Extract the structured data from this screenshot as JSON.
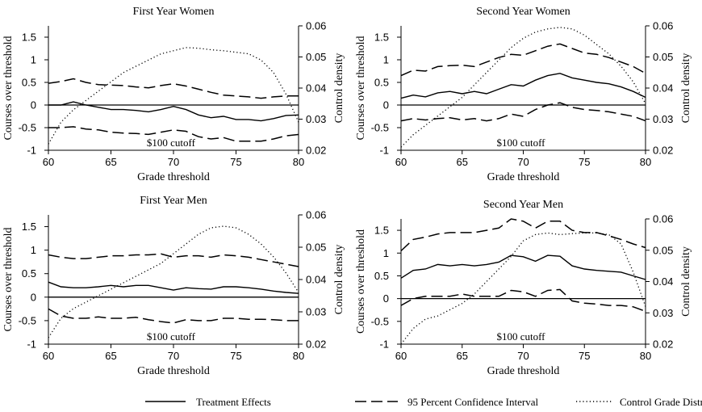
{
  "legend": {
    "items": [
      {
        "label": "Treatment Effects",
        "style": "solid"
      },
      {
        "label": "95 Percent Confidence Interval",
        "style": "dashed"
      },
      {
        "label": "Control Grade Distribution",
        "style": "dotted"
      }
    ]
  },
  "chart_data": [
    {
      "type": "line",
      "title": "First Year Women",
      "xlabel": "Grade threshold",
      "ylabel": "Courses over threshold",
      "y2label": "Control density",
      "xlim": [
        60,
        80
      ],
      "ylim": [
        -1,
        1.75
      ],
      "y2lim": [
        0.02,
        0.06
      ],
      "x_ticks": [
        "60",
        "65",
        "70",
        "75",
        "80"
      ],
      "y_ticks": [
        "-1",
        "-0.5",
        "0",
        "0.5",
        "1",
        "1.5"
      ],
      "y2_ticks": [
        "0.02",
        "0.03",
        "0.04",
        "0.05",
        "0.06"
      ],
      "annotation": "$100 cutoff",
      "x": [
        60,
        61,
        62,
        63,
        64,
        65,
        66,
        67,
        68,
        69,
        70,
        71,
        72,
        73,
        74,
        75,
        76,
        77,
        78,
        79,
        80
      ],
      "series": [
        {
          "style": "solid",
          "axis": "left",
          "values": [
            0.0,
            0.0,
            0.07,
            0.0,
            -0.05,
            -0.1,
            -0.1,
            -0.12,
            -0.15,
            -0.1,
            -0.03,
            -0.1,
            -0.22,
            -0.28,
            -0.25,
            -0.32,
            -0.32,
            -0.35,
            -0.3,
            -0.23,
            -0.22
          ]
        },
        {
          "style": "dashed",
          "axis": "left",
          "values": [
            0.48,
            0.52,
            0.58,
            0.5,
            0.45,
            0.44,
            0.43,
            0.4,
            0.38,
            0.43,
            0.47,
            0.42,
            0.35,
            0.28,
            0.22,
            0.2,
            0.18,
            0.15,
            0.18,
            0.2,
            0.2
          ]
        },
        {
          "style": "dashed",
          "axis": "left",
          "values": [
            -0.5,
            -0.5,
            -0.48,
            -0.53,
            -0.55,
            -0.6,
            -0.62,
            -0.63,
            -0.65,
            -0.6,
            -0.55,
            -0.58,
            -0.7,
            -0.75,
            -0.72,
            -0.8,
            -0.8,
            -0.8,
            -0.75,
            -0.68,
            -0.65
          ]
        },
        {
          "style": "dotted",
          "axis": "right",
          "values": [
            0.022,
            0.029,
            0.033,
            0.036,
            0.039,
            0.042,
            0.045,
            0.047,
            0.049,
            0.051,
            0.052,
            0.053,
            0.0528,
            0.0523,
            0.052,
            0.0515,
            0.051,
            0.049,
            0.045,
            0.038,
            0.029
          ]
        }
      ]
    },
    {
      "type": "line",
      "title": "Second Year Women",
      "xlabel": "Grade threshold",
      "ylabel": "Courses over threshold",
      "y2label": "Control density",
      "xlim": [
        60,
        80
      ],
      "ylim": [
        -1,
        1.75
      ],
      "y2lim": [
        0.02,
        0.06
      ],
      "x_ticks": [
        "60",
        "65",
        "70",
        "75",
        "80"
      ],
      "y_ticks": [
        "-1",
        "-0.5",
        "0",
        "0.5",
        "1",
        "1.5"
      ],
      "y2_ticks": [
        "0.02",
        "0.03",
        "0.04",
        "0.05",
        "0.06"
      ],
      "annotation": "$100 cutoff",
      "x": [
        60,
        61,
        62,
        63,
        64,
        65,
        66,
        67,
        68,
        69,
        70,
        71,
        72,
        73,
        74,
        75,
        76,
        77,
        78,
        79,
        80
      ],
      "series": [
        {
          "style": "solid",
          "axis": "left",
          "values": [
            0.15,
            0.22,
            0.18,
            0.27,
            0.3,
            0.25,
            0.3,
            0.25,
            0.35,
            0.45,
            0.42,
            0.55,
            0.65,
            0.7,
            0.6,
            0.55,
            0.5,
            0.47,
            0.4,
            0.3,
            0.17
          ]
        },
        {
          "style": "dashed",
          "axis": "left",
          "values": [
            0.65,
            0.77,
            0.75,
            0.85,
            0.87,
            0.88,
            0.85,
            0.95,
            1.05,
            1.12,
            1.1,
            1.2,
            1.3,
            1.35,
            1.25,
            1.15,
            1.12,
            1.05,
            0.95,
            0.85,
            0.7
          ]
        },
        {
          "style": "dashed",
          "axis": "left",
          "values": [
            -0.35,
            -0.3,
            -0.33,
            -0.3,
            -0.28,
            -0.33,
            -0.3,
            -0.35,
            -0.3,
            -0.2,
            -0.25,
            -0.1,
            0.0,
            0.05,
            -0.05,
            -0.1,
            -0.12,
            -0.15,
            -0.2,
            -0.25,
            -0.35
          ]
        },
        {
          "style": "dotted",
          "axis": "right",
          "values": [
            0.021,
            0.025,
            0.028,
            0.031,
            0.034,
            0.037,
            0.041,
            0.045,
            0.049,
            0.053,
            0.056,
            0.058,
            0.059,
            0.0595,
            0.059,
            0.057,
            0.054,
            0.051,
            0.047,
            0.042,
            0.035
          ]
        }
      ]
    },
    {
      "type": "line",
      "title": "First Year Men",
      "xlabel": "Grade threshold",
      "ylabel": "Courses over threshold",
      "y2label": "Control density",
      "xlim": [
        60,
        80
      ],
      "ylim": [
        -1,
        1.75
      ],
      "y2lim": [
        0.02,
        0.06
      ],
      "x_ticks": [
        "60",
        "65",
        "70",
        "75",
        "80"
      ],
      "y_ticks": [
        "-1",
        "-0.5",
        "0",
        "0.5",
        "1",
        "1.5"
      ],
      "y2_ticks": [
        "0.02",
        "0.03",
        "0.04",
        "0.05",
        "0.06"
      ],
      "annotation": "$100 cutoff",
      "x": [
        60,
        61,
        62,
        63,
        64,
        65,
        66,
        67,
        68,
        69,
        70,
        71,
        72,
        73,
        74,
        75,
        76,
        77,
        78,
        79,
        80
      ],
      "series": [
        {
          "style": "solid",
          "axis": "left",
          "values": [
            0.32,
            0.22,
            0.2,
            0.2,
            0.22,
            0.25,
            0.22,
            0.25,
            0.25,
            0.2,
            0.15,
            0.2,
            0.18,
            0.17,
            0.22,
            0.22,
            0.2,
            0.17,
            0.13,
            0.1,
            0.08
          ]
        },
        {
          "style": "dashed",
          "axis": "left",
          "values": [
            0.9,
            0.85,
            0.82,
            0.82,
            0.85,
            0.88,
            0.88,
            0.9,
            0.9,
            0.92,
            0.85,
            0.88,
            0.88,
            0.85,
            0.9,
            0.88,
            0.85,
            0.8,
            0.75,
            0.7,
            0.65
          ]
        },
        {
          "style": "dashed",
          "axis": "left",
          "values": [
            -0.25,
            -0.4,
            -0.45,
            -0.45,
            -0.42,
            -0.45,
            -0.45,
            -0.43,
            -0.48,
            -0.52,
            -0.55,
            -0.48,
            -0.5,
            -0.5,
            -0.45,
            -0.45,
            -0.47,
            -0.47,
            -0.48,
            -0.5,
            -0.5
          ]
        },
        {
          "style": "dotted",
          "axis": "right",
          "values": [
            0.022,
            0.028,
            0.031,
            0.033,
            0.035,
            0.037,
            0.039,
            0.041,
            0.043,
            0.045,
            0.048,
            0.051,
            0.054,
            0.056,
            0.0565,
            0.056,
            0.054,
            0.051,
            0.047,
            0.042,
            0.036
          ]
        }
      ]
    },
    {
      "type": "line",
      "title": "Second Year Men",
      "xlabel": "Grade threshold",
      "ylabel": "Courses over threshold",
      "y2label": "Control density",
      "xlim": [
        60,
        80
      ],
      "ylim": [
        -1,
        1.75
      ],
      "y2lim": [
        0.02,
        0.06
      ],
      "x_ticks": [
        "60",
        "65",
        "70",
        "75",
        "80"
      ],
      "y_ticks": [
        "-1",
        "-0.5",
        "0",
        "0.5",
        "1",
        "1.5"
      ],
      "y2_ticks": [
        "0.02",
        "0.03",
        "0.04",
        "0.05",
        "0.06"
      ],
      "annotation": "$100 cutoff",
      "x": [
        60,
        61,
        62,
        63,
        64,
        65,
        66,
        67,
        68,
        69,
        70,
        71,
        72,
        73,
        74,
        75,
        76,
        77,
        78,
        79,
        80
      ],
      "series": [
        {
          "style": "solid",
          "axis": "left",
          "values": [
            0.45,
            0.62,
            0.65,
            0.75,
            0.72,
            0.75,
            0.72,
            0.75,
            0.8,
            0.95,
            0.92,
            0.82,
            0.95,
            0.93,
            0.72,
            0.65,
            0.62,
            0.6,
            0.58,
            0.5,
            0.42
          ]
        },
        {
          "style": "dashed",
          "axis": "left",
          "values": [
            1.05,
            1.3,
            1.35,
            1.42,
            1.45,
            1.45,
            1.45,
            1.5,
            1.55,
            1.75,
            1.7,
            1.55,
            1.7,
            1.7,
            1.5,
            1.45,
            1.45,
            1.38,
            1.3,
            1.2,
            1.12
          ]
        },
        {
          "style": "dashed",
          "axis": "left",
          "values": [
            -0.15,
            0.0,
            0.05,
            0.05,
            0.05,
            0.1,
            0.05,
            0.05,
            0.05,
            0.18,
            0.15,
            0.05,
            0.18,
            0.2,
            -0.05,
            -0.1,
            -0.12,
            -0.15,
            -0.15,
            -0.18,
            -0.28
          ]
        },
        {
          "style": "dotted",
          "axis": "right",
          "values": [
            0.02,
            0.025,
            0.028,
            0.029,
            0.031,
            0.033,
            0.036,
            0.04,
            0.044,
            0.048,
            0.053,
            0.055,
            0.0555,
            0.055,
            0.0553,
            0.0555,
            0.0555,
            0.055,
            0.052,
            0.043,
            0.032
          ]
        }
      ]
    }
  ]
}
